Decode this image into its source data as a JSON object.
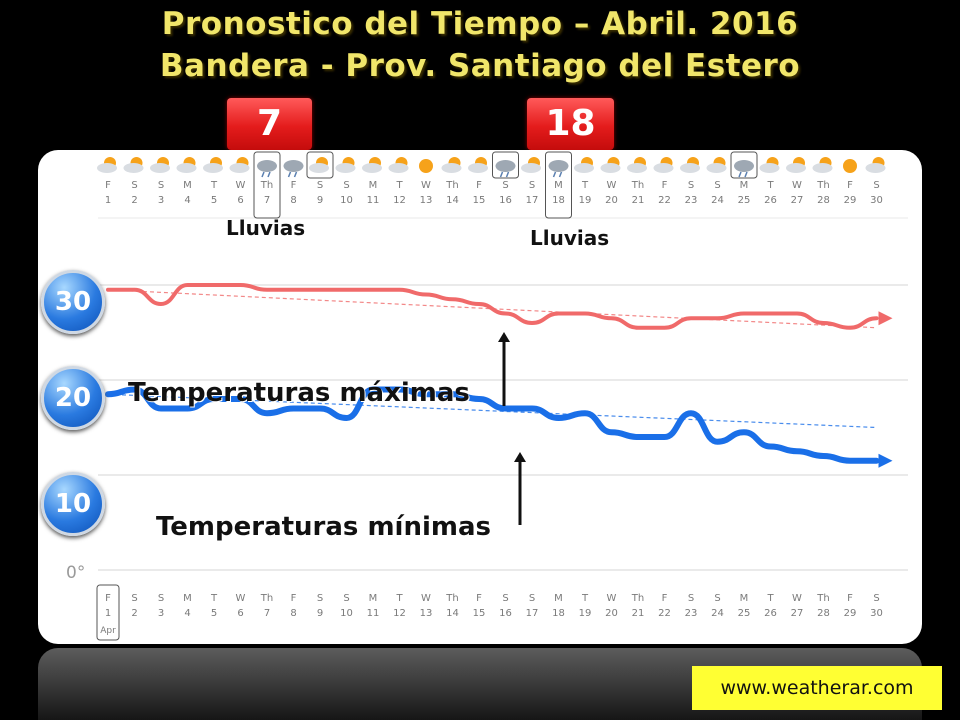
{
  "title": {
    "line1": "Pronostico  del Tiempo – Abril. 2016",
    "line2": "Bandera - Prov. Santiago del Estero"
  },
  "highlight_days": [
    "7",
    "18"
  ],
  "rain_labels": [
    "Lluvias",
    "Lluvias"
  ],
  "scale_labels": [
    "30",
    "20",
    "10"
  ],
  "axis_zero_label": "0°",
  "website": "www.weatherar.com",
  "chart_data": {
    "type": "line",
    "weekday_letters": [
      "F",
      "S",
      "S",
      "M",
      "T",
      "W",
      "Th",
      "F",
      "S",
      "S",
      "M",
      "T",
      "W",
      "Th",
      "F",
      "S",
      "S",
      "M",
      "T",
      "W",
      "Th",
      "F",
      "S",
      "S",
      "M",
      "T",
      "W",
      "Th",
      "F",
      "S"
    ],
    "days": [
      1,
      2,
      3,
      4,
      5,
      6,
      7,
      8,
      9,
      10,
      11,
      12,
      13,
      14,
      15,
      16,
      17,
      18,
      19,
      20,
      21,
      22,
      23,
      24,
      25,
      26,
      27,
      28,
      29,
      30
    ],
    "month_label": "Apr",
    "ylim": [
      0,
      35
    ],
    "yticks": [
      10,
      20,
      30
    ],
    "rain_days": [
      7,
      18
    ],
    "weather_icons": [
      "partly-cloudy",
      "partly-cloudy",
      "partly-cloudy",
      "partly-cloudy",
      "partly-cloudy",
      "partly-cloudy",
      "rain",
      "rain",
      "sun-cloud",
      "partly-cloudy",
      "partly-cloudy",
      "partly-cloudy",
      "sunny",
      "partly-cloudy",
      "partly-cloudy",
      "rain",
      "partly-cloudy",
      "rain",
      "partly-cloudy",
      "partly-cloudy",
      "partly-cloudy",
      "partly-cloudy",
      "partly-cloudy",
      "partly-cloudy",
      "rain",
      "partly-cloudy",
      "partly-cloudy",
      "partly-cloudy",
      "sunny",
      "partly-cloudy"
    ],
    "series": [
      {
        "name": "Temperaturas máximas",
        "color": "#f06a6a",
        "values": [
          29.5,
          29.5,
          28,
          30,
          30,
          30,
          29.5,
          29.5,
          29.5,
          29.5,
          29.5,
          29.5,
          29,
          28.5,
          28,
          27,
          26,
          27,
          27,
          26.5,
          25.5,
          25.5,
          26.5,
          26.5,
          27,
          27,
          27,
          26,
          25.5,
          26.5
        ]
      },
      {
        "name": "Temperaturas mínimas",
        "color": "#1a6fe8",
        "values": [
          18.5,
          19,
          17,
          17,
          18,
          18,
          16.5,
          17,
          17,
          16,
          19,
          19,
          18.5,
          18.5,
          18,
          17,
          17,
          16,
          16.5,
          14.5,
          14,
          14,
          16.5,
          13.5,
          14.5,
          13,
          12.5,
          12,
          11.5,
          11.5
        ]
      }
    ],
    "trend_max": [
      29.5,
      25.5
    ],
    "trend_min": [
      18.5,
      15
    ]
  }
}
